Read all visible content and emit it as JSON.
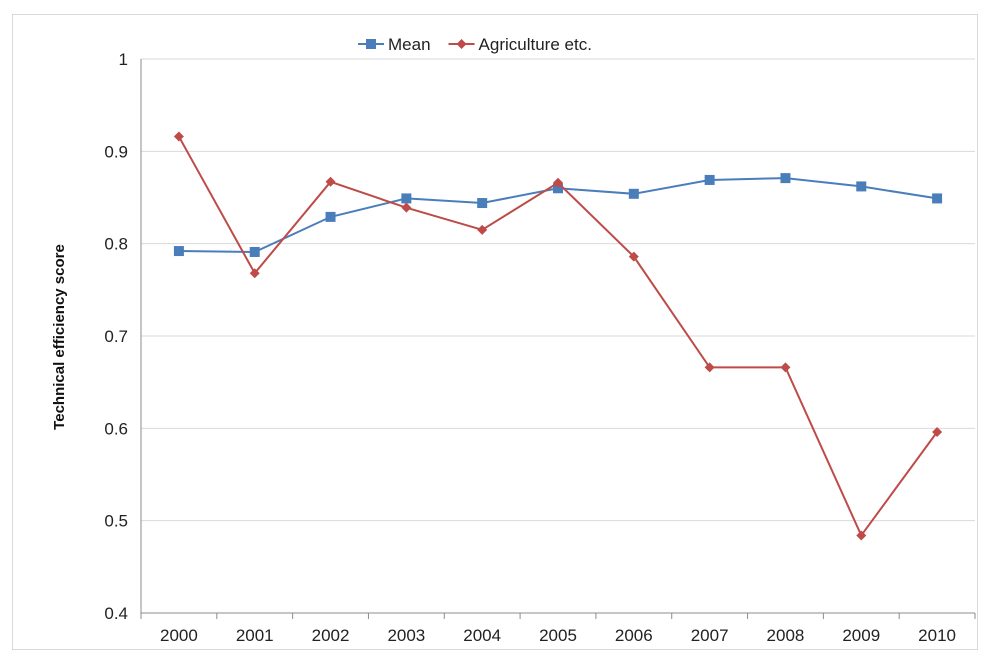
{
  "chart_data": {
    "type": "line",
    "title": "",
    "xlabel": "",
    "ylabel": "Technical efficiency score",
    "x": [
      "2000",
      "2001",
      "2002",
      "2003",
      "2004",
      "2005",
      "2006",
      "2007",
      "2008",
      "2009",
      "2010"
    ],
    "ylim": [
      0.4,
      1.0
    ],
    "yticks": [
      "0.4",
      "0.5",
      "0.6",
      "0.7",
      "0.8",
      "0.9",
      "1"
    ],
    "grid": true,
    "legend_position": "top-center",
    "series": [
      {
        "name": "Mean",
        "marker": "square",
        "color": "#4a7ebb",
        "values": [
          0.792,
          0.791,
          0.829,
          0.849,
          0.844,
          0.86,
          0.854,
          0.869,
          0.871,
          0.862,
          0.849
        ]
      },
      {
        "name": "Agriculture etc.",
        "marker": "diamond",
        "color": "#be4b48",
        "values": [
          0.916,
          0.768,
          0.867,
          0.839,
          0.815,
          0.866,
          0.786,
          0.666,
          0.666,
          0.484,
          0.596
        ]
      }
    ]
  }
}
